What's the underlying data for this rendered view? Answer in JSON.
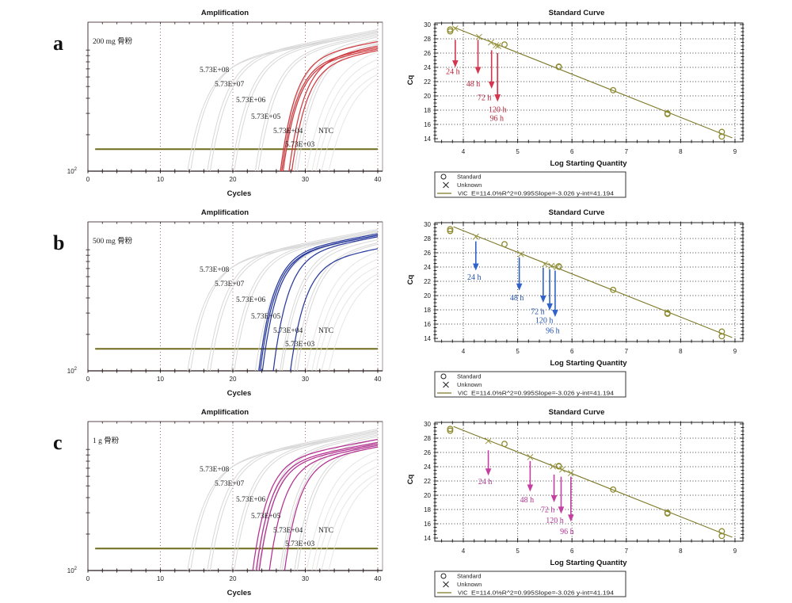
{
  "figure": {
    "panels": [
      {
        "letter": "a",
        "amplification_index": 0,
        "standard_curve_index": 1
      },
      {
        "letter": "b",
        "amplification_index": 2,
        "standard_curve_index": 3
      },
      {
        "letter": "c",
        "amplification_index": 4,
        "standard_curve_index": 5
      }
    ],
    "colors": {
      "standard_curves": "#d4d4d4",
      "late_curves": "#e3e3e3",
      "threshold": "#6f6a1c",
      "amp_grid": "#a86a6a",
      "fit": "#7d7826",
      "marker": "#8e8b30",
      "unknown_marker": "#9a9640",
      "samples_a": "#cc3338",
      "samples_b": "#1d2f99",
      "samples_c": "#b0258a",
      "arrow_a": "#d2374f",
      "arrow_b": "#2f63c9",
      "arrow_c": "#c43fa0",
      "label_a": "#b8263a",
      "label_b": "#2453b0",
      "label_c": "#b13495"
    }
  },
  "chart_data": [
    {
      "type": "line",
      "panel": "a",
      "title": "Amplification",
      "xlabel": "Cycles",
      "ylabel": "",
      "xlim": [
        0,
        40.66
      ],
      "xticks": [
        0,
        10,
        20,
        30,
        40
      ],
      "xtick_labels": [
        "0",
        "10",
        "20",
        "30",
        "40"
      ],
      "yscale": "log",
      "ylim": [
        100,
        1700
      ],
      "ytick_label": {
        "value": 100,
        "base": "10",
        "exponent": "2"
      },
      "grid": "vertical dotted",
      "threshold_rfu": 152,
      "threshold_range": [
        1,
        40
      ],
      "sample_label": "200 mg 骨粉",
      "annotations": [
        "5.73E+08",
        "5.73E+07",
        "5.73E+06",
        "5.73E+05",
        "5.73E+04",
        "NTC",
        "5.73E+03"
      ],
      "series": [
        {
          "name": "standards",
          "color_key": "standard_curves",
          "curves": [
            {
              "cq": 14.3,
              "rfu_end": 1393
            },
            {
              "cq": 14.7,
              "rfu_end": 1434
            },
            {
              "cq": 17.0,
              "rfu_end": 1475
            },
            {
              "cq": 17.4,
              "rfu_end": 1434
            },
            {
              "cq": 20.3,
              "rfu_end": 1434
            },
            {
              "cq": 20.7,
              "rfu_end": 1393
            },
            {
              "cq": 23.6,
              "rfu_end": 1355
            },
            {
              "cq": 24.0,
              "rfu_end": 1317
            },
            {
              "cq": 27.0,
              "rfu_end": 1281
            },
            {
              "cq": 27.3,
              "rfu_end": 1211
            },
            {
              "cq": 29.0,
              "rfu_end": 1143
            },
            {
              "cq": 29.4,
              "rfu_end": 1111
            }
          ]
        },
        {
          "name": "late",
          "color_key": "late_curves",
          "curves": [
            {
              "cq": 30.8,
              "rfu_end": 964
            },
            {
              "cq": 31.6,
              "rfu_end": 837
            },
            {
              "cq": 32.2,
              "rfu_end": 727
            },
            {
              "cq": 33.0,
              "rfu_end": 631
            },
            {
              "cq": 34.0,
              "rfu_end": 580
            }
          ]
        },
        {
          "name": "samples",
          "color_key": "samples_a",
          "curves": [
            {
              "cq": 27.0,
              "rfu_end": 1175
            },
            {
              "cq": 27.2,
              "rfu_end": 1049
            },
            {
              "cq": 27.4,
              "rfu_end": 1021
            },
            {
              "cq": 28.2,
              "rfu_end": 1080
            },
            {
              "cq": 28.6,
              "rfu_end": 992
            }
          ]
        }
      ]
    },
    {
      "type": "scatter",
      "panel": "a",
      "title": "Standard Curve",
      "xlabel": "Log Starting Quantity",
      "ylabel": "Cq",
      "xlim": [
        3.475,
        9.146
      ],
      "ylim": [
        13.56,
        30.22
      ],
      "xticks": [
        4,
        5,
        6,
        7,
        8,
        9
      ],
      "yticks": [
        30,
        28,
        26,
        24,
        22,
        20,
        18,
        16,
        14
      ],
      "grid": "dotted",
      "series": [
        {
          "name": "Standard",
          "marker": "circle",
          "points": [
            [
              3.758,
              29.05
            ],
            [
              3.758,
              29.3
            ],
            [
              4.758,
              27.2
            ],
            [
              5.758,
              24.05
            ],
            [
              5.758,
              24.1
            ],
            [
              6.758,
              20.8
            ],
            [
              7.758,
              17.45
            ],
            [
              7.758,
              17.55
            ],
            [
              8.758,
              14.3
            ],
            [
              8.758,
              14.95
            ]
          ]
        },
        {
          "name": "Unknown",
          "marker": "x",
          "points": [
            [
              3.85,
              29.44
            ],
            [
              4.29,
              28.26
            ],
            [
              4.51,
              27.5
            ],
            [
              4.6,
              27.1
            ],
            [
              4.64,
              27.0
            ]
          ]
        }
      ],
      "fit": {
        "name": "VIC",
        "slope": -3.026,
        "intercept": 41.194,
        "efficiency": "114.0%",
        "r2": 0.995,
        "x_range": [
          3.82,
          8.95
        ]
      },
      "legend": {
        "position": "bottom-left",
        "standard": "Standard",
        "unknown": "Unknown",
        "fit_label": "VIC",
        "fit_stats": "E=114.0%R^2=0.995Slope=-3.026 y-int=41.194"
      },
      "annotations": [
        {
          "label": "24 h",
          "x": 3.852,
          "cq_from": 27.86,
          "cq_to": 23.98
        },
        {
          "label": "48 h",
          "x": 4.27,
          "cq_from": 27.86,
          "cq_to": 23.05
        },
        {
          "label": "72 h",
          "x": 4.52,
          "cq_from": 26.4,
          "cq_to": 21.0
        },
        {
          "label": "120 h",
          "x": 4.63,
          "cq_from": 26.0,
          "cq_to": 19.2
        },
        {
          "label": "96 h",
          "x": 4.63,
          "cq_from": 26.0,
          "cq_to": 19.2
        }
      ]
    },
    {
      "type": "line",
      "panel": "b",
      "title": "Amplification",
      "xlabel": "Cycles",
      "ylabel": "",
      "xlim": [
        0,
        40.66
      ],
      "xticks": [
        0,
        10,
        20,
        30,
        40
      ],
      "xtick_labels": [
        "0",
        "10",
        "20",
        "30",
        "40"
      ],
      "yscale": "log",
      "ylim": [
        100,
        1700
      ],
      "ytick_label": {
        "value": 100,
        "base": "10",
        "exponent": "2"
      },
      "grid": "vertical dotted",
      "threshold_rfu": 152,
      "threshold_range": [
        1,
        40
      ],
      "sample_label": "500 mg 骨粉",
      "annotations": [
        "5.73E+08",
        "5.73E+07",
        "5.73E+06",
        "5.73E+05",
        "5.73E+04",
        "NTC",
        "5.73E+03"
      ],
      "series": [
        {
          "name": "standards",
          "color_key": "standard_curves",
          "curves": [
            {
              "cq": 14.3,
              "rfu_end": 1393
            },
            {
              "cq": 14.7,
              "rfu_end": 1434
            },
            {
              "cq": 17.0,
              "rfu_end": 1475
            },
            {
              "cq": 17.4,
              "rfu_end": 1434
            },
            {
              "cq": 20.3,
              "rfu_end": 1434
            },
            {
              "cq": 20.7,
              "rfu_end": 1393
            },
            {
              "cq": 23.6,
              "rfu_end": 1355
            },
            {
              "cq": 24.0,
              "rfu_end": 1317
            },
            {
              "cq": 27.0,
              "rfu_end": 1281
            },
            {
              "cq": 27.3,
              "rfu_end": 1211
            },
            {
              "cq": 29.0,
              "rfu_end": 1143
            },
            {
              "cq": 29.4,
              "rfu_end": 1111
            }
          ]
        },
        {
          "name": "late",
          "color_key": "late_curves",
          "curves": [
            {
              "cq": 30.8,
              "rfu_end": 964
            },
            {
              "cq": 31.6,
              "rfu_end": 837
            },
            {
              "cq": 32.2,
              "rfu_end": 727
            },
            {
              "cq": 33.0,
              "rfu_end": 631
            },
            {
              "cq": 34.0,
              "rfu_end": 580
            }
          ]
        },
        {
          "name": "samples",
          "color_key": "samples_b",
          "curves": [
            {
              "cq": 24.0,
              "rfu_end": 1355
            },
            {
              "cq": 24.2,
              "rfu_end": 1317
            },
            {
              "cq": 24.5,
              "rfu_end": 1317
            },
            {
              "cq": 26.0,
              "rfu_end": 1281
            },
            {
              "cq": 28.4,
              "rfu_end": 1021
            }
          ]
        }
      ]
    },
    {
      "type": "scatter",
      "panel": "b",
      "title": "Standard Curve",
      "xlabel": "Log Starting Quantity",
      "ylabel": "Cq",
      "xlim": [
        3.475,
        9.146
      ],
      "ylim": [
        13.56,
        30.22
      ],
      "xticks": [
        4,
        5,
        6,
        7,
        8,
        9
      ],
      "yticks": [
        30,
        28,
        26,
        24,
        22,
        20,
        18,
        16,
        14
      ],
      "grid": "dotted",
      "series": [
        {
          "name": "Standard",
          "marker": "circle",
          "points": [
            [
              3.758,
              29.05
            ],
            [
              3.758,
              29.3
            ],
            [
              4.758,
              27.2
            ],
            [
              5.758,
              24.05
            ],
            [
              5.758,
              24.1
            ],
            [
              6.758,
              20.8
            ],
            [
              7.758,
              17.45
            ],
            [
              7.758,
              17.55
            ],
            [
              8.758,
              14.3
            ],
            [
              8.758,
              14.95
            ]
          ]
        },
        {
          "name": "Unknown",
          "marker": "x",
          "points": [
            [
              4.23,
              28.25
            ],
            [
              5.06,
              25.8
            ],
            [
              5.5,
              24.4
            ],
            [
              5.62,
              24.16
            ],
            [
              5.72,
              23.98
            ]
          ]
        }
      ],
      "fit": {
        "name": "VIC",
        "slope": -3.026,
        "intercept": 41.194,
        "efficiency": "114.0%",
        "r2": 0.995,
        "x_range": [
          3.82,
          8.95
        ]
      },
      "legend": {
        "position": "bottom-left",
        "standard": "Standard",
        "unknown": "Unknown",
        "fit_label": "VIC",
        "fit_stats": "E=114.0%R^2=0.995Slope=-3.026 y-int=41.194"
      },
      "annotations": [
        {
          "label": "24 h",
          "x": 4.23,
          "cq_from": 27.6,
          "cq_to": 23.5
        },
        {
          "label": "48 h",
          "x": 5.03,
          "cq_from": 25.35,
          "cq_to": 20.7
        },
        {
          "label": "72 h",
          "x": 5.47,
          "cq_from": 23.9,
          "cq_to": 19.0
        },
        {
          "label": "120 h",
          "x": 5.59,
          "cq_from": 23.7,
          "cq_to": 17.9
        },
        {
          "label": "96 h",
          "x": 5.69,
          "cq_from": 23.5,
          "cq_to": 17.0
        }
      ]
    },
    {
      "type": "line",
      "panel": "c",
      "title": "Amplification",
      "xlabel": "Cycles",
      "ylabel": "",
      "xlim": [
        0,
        40.66
      ],
      "xticks": [
        0,
        10,
        20,
        30,
        40
      ],
      "xtick_labels": [
        "0",
        "10",
        "20",
        "30",
        "40"
      ],
      "yscale": "log",
      "ylim": [
        100,
        1700
      ],
      "ytick_label": {
        "value": 100,
        "base": "10",
        "exponent": "2"
      },
      "grid": "vertical dotted",
      "threshold_rfu": 152,
      "threshold_range": [
        1,
        40
      ],
      "sample_label": "1 g 骨粉",
      "annotations": [
        "5.73E+08",
        "5.73E+07",
        "5.73E+06",
        "5.73E+05",
        "5.73E+04",
        "NTC",
        "5.73E+03"
      ],
      "series": [
        {
          "name": "standards",
          "color_key": "standard_curves",
          "curves": [
            {
              "cq": 14.3,
              "rfu_end": 1393
            },
            {
              "cq": 14.7,
              "rfu_end": 1434
            },
            {
              "cq": 17.0,
              "rfu_end": 1475
            },
            {
              "cq": 17.4,
              "rfu_end": 1434
            },
            {
              "cq": 20.3,
              "rfu_end": 1434
            },
            {
              "cq": 20.7,
              "rfu_end": 1393
            },
            {
              "cq": 23.6,
              "rfu_end": 1355
            },
            {
              "cq": 24.0,
              "rfu_end": 1317
            },
            {
              "cq": 27.0,
              "rfu_end": 1281
            },
            {
              "cq": 27.3,
              "rfu_end": 1211
            },
            {
              "cq": 29.0,
              "rfu_end": 1143
            },
            {
              "cq": 29.4,
              "rfu_end": 1111
            }
          ]
        },
        {
          "name": "late",
          "color_key": "late_curves",
          "curves": [
            {
              "cq": 30.8,
              "rfu_end": 964
            },
            {
              "cq": 31.6,
              "rfu_end": 837
            },
            {
              "cq": 32.2,
              "rfu_end": 727
            },
            {
              "cq": 33.0,
              "rfu_end": 631
            },
            {
              "cq": 34.0,
              "rfu_end": 580
            }
          ]
        },
        {
          "name": "samples",
          "color_key": "samples_c",
          "curves": [
            {
              "cq": 23.2,
              "rfu_end": 1211
            },
            {
              "cq": 23.7,
              "rfu_end": 1143
            },
            {
              "cq": 24.1,
              "rfu_end": 1111
            },
            {
              "cq": 25.5,
              "rfu_end": 1080
            },
            {
              "cq": 27.6,
              "rfu_end": 1049
            }
          ]
        }
      ]
    },
    {
      "type": "scatter",
      "panel": "c",
      "title": "Standard Curve",
      "xlabel": "Log Starting Quantity",
      "ylabel": "Cq",
      "xlim": [
        3.475,
        9.146
      ],
      "ylim": [
        13.56,
        30.22
      ],
      "xticks": [
        4,
        5,
        6,
        7,
        8,
        9
      ],
      "yticks": [
        30,
        28,
        26,
        24,
        22,
        20,
        18,
        16,
        14
      ],
      "grid": "dotted",
      "series": [
        {
          "name": "Standard",
          "marker": "circle",
          "points": [
            [
              3.758,
              29.05
            ],
            [
              3.758,
              29.3
            ],
            [
              4.758,
              27.2
            ],
            [
              5.758,
              24.05
            ],
            [
              5.758,
              24.1
            ],
            [
              6.758,
              20.8
            ],
            [
              7.758,
              17.45
            ],
            [
              7.758,
              17.55
            ],
            [
              8.758,
              14.3
            ],
            [
              8.758,
              14.95
            ]
          ]
        },
        {
          "name": "Unknown",
          "marker": "x",
          "points": [
            [
              4.46,
              27.6
            ],
            [
              5.23,
              25.35
            ],
            [
              5.65,
              24.05
            ],
            [
              5.82,
              23.6
            ],
            [
              5.98,
              23.1
            ]
          ]
        }
      ],
      "fit": {
        "name": "VIC",
        "slope": -3.026,
        "intercept": 41.194,
        "efficiency": "114.0%",
        "r2": 0.995,
        "x_range": [
          3.82,
          8.95
        ]
      },
      "legend": {
        "position": "bottom-left",
        "standard": "Standard",
        "unknown": "Unknown",
        "fit_label": "VIC",
        "fit_stats": "E=114.0%R^2=0.995Slope=-3.026 y-int=41.194"
      },
      "annotations": [
        {
          "label": "24 h",
          "x": 4.46,
          "cq_from": 26.3,
          "cq_to": 22.75
        },
        {
          "label": "48 h",
          "x": 5.23,
          "cq_from": 24.8,
          "cq_to": 20.5
        },
        {
          "label": "72 h",
          "x": 5.67,
          "cq_from": 22.9,
          "cq_to": 19.0
        },
        {
          "label": "120 h",
          "x": 5.8,
          "cq_from": 22.6,
          "cq_to": 17.4
        },
        {
          "label": "96 h",
          "x": 5.98,
          "cq_from": 22.6,
          "cq_to": 16.3
        }
      ]
    }
  ]
}
